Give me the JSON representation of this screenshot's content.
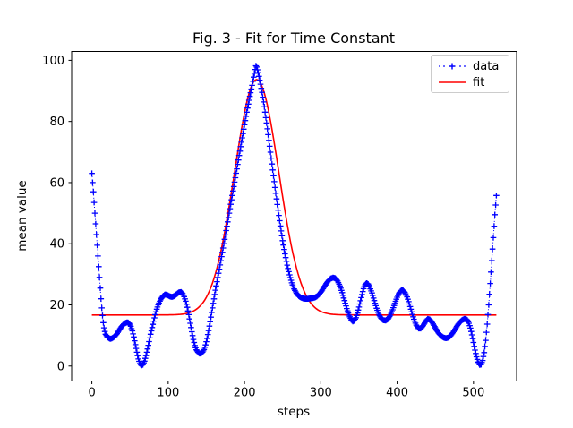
{
  "figure": {
    "background": "#ffffff",
    "axes_color": "#000000",
    "legend_border_color": "#cccccc"
  },
  "chart_data": {
    "type": "line",
    "title": "Fig. 3 - Fit for Time Constant",
    "xlabel": "steps",
    "ylabel": "mean value",
    "xlim": [
      -26.5,
      556.5
    ],
    "ylim": [
      -4.9,
      102.9
    ],
    "xticks": [
      0,
      100,
      200,
      300,
      400,
      500
    ],
    "yticks": [
      0,
      20,
      40,
      60,
      80,
      100
    ],
    "grid": false,
    "legend_position": "upper right",
    "series": [
      {
        "name": "data",
        "color": "#0000ff",
        "linestyle": "dotted",
        "marker": "plus",
        "marker_every": 1,
        "x_range": [
          0,
          530
        ],
        "points": [
          [
            0,
            63
          ],
          [
            1,
            60
          ],
          [
            2,
            57
          ],
          [
            3,
            53.5
          ],
          [
            4,
            50
          ],
          [
            5,
            46.5
          ],
          [
            6,
            43
          ],
          [
            7,
            39.5
          ],
          [
            8,
            36
          ],
          [
            9,
            32.5
          ],
          [
            10,
            29
          ],
          [
            11,
            25.5
          ],
          [
            12,
            22
          ],
          [
            13,
            19
          ],
          [
            14,
            16.5
          ],
          [
            15,
            14.2
          ],
          [
            16,
            12.5
          ],
          [
            17,
            11.3
          ],
          [
            18,
            10.4
          ],
          [
            20,
            9.6
          ],
          [
            22,
            9.2
          ],
          [
            24,
            8.9
          ],
          [
            26,
            9
          ],
          [
            28,
            9.3
          ],
          [
            30,
            9.7
          ],
          [
            33,
            10.6
          ],
          [
            36,
            11.8
          ],
          [
            39,
            12.9
          ],
          [
            42,
            13.8
          ],
          [
            45,
            14.2
          ],
          [
            47,
            14.3
          ],
          [
            49,
            13.9
          ],
          [
            51,
            13
          ],
          [
            53,
            11.5
          ],
          [
            55,
            9.5
          ],
          [
            57,
            7
          ],
          [
            59,
            4.5
          ],
          [
            61,
            2.3
          ],
          [
            63,
            0.8
          ],
          [
            65,
            0.2
          ],
          [
            67,
            0.5
          ],
          [
            69,
            1.6
          ],
          [
            71,
            3.4
          ],
          [
            73,
            5.6
          ],
          [
            75,
            8
          ],
          [
            77,
            10.4
          ],
          [
            79,
            12.6
          ],
          [
            81,
            14.7
          ],
          [
            83,
            16.8
          ],
          [
            85,
            18.6
          ],
          [
            87,
            20
          ],
          [
            89,
            21.2
          ],
          [
            91,
            22.1
          ],
          [
            93,
            22.8
          ],
          [
            96,
            23.4
          ],
          [
            99,
            23.2
          ],
          [
            102,
            22.8
          ],
          [
            105,
            22.6
          ],
          [
            108,
            22.9
          ],
          [
            111,
            23.5
          ],
          [
            114,
            24.1
          ],
          [
            117,
            24.2
          ],
          [
            119,
            23.7
          ],
          [
            121,
            22.7
          ],
          [
            123,
            21.2
          ],
          [
            125,
            19.2
          ],
          [
            127,
            16.8
          ],
          [
            129,
            14
          ],
          [
            131,
            11.2
          ],
          [
            133,
            8.7
          ],
          [
            135,
            6.7
          ],
          [
            137,
            5.3
          ],
          [
            139,
            4.5
          ],
          [
            141,
            4.1
          ],
          [
            143,
            4.1
          ],
          [
            145,
            4.5
          ],
          [
            147,
            5.4
          ],
          [
            149,
            6.9
          ],
          [
            151,
            9
          ],
          [
            153,
            11.6
          ],
          [
            155,
            14.5
          ],
          [
            157,
            17.5
          ],
          [
            159,
            20.5
          ],
          [
            161,
            23.4
          ],
          [
            164,
            27.6
          ],
          [
            167,
            31.7
          ],
          [
            170,
            35.8
          ],
          [
            173,
            40
          ],
          [
            176,
            44.3
          ],
          [
            180,
            50
          ],
          [
            184,
            55.8
          ],
          [
            188,
            61.6
          ],
          [
            192,
            67.4
          ],
          [
            196,
            73.2
          ],
          [
            200,
            78.9
          ],
          [
            204,
            84.4
          ],
          [
            207,
            88.2
          ],
          [
            210,
            91.8
          ],
          [
            212,
            94.5
          ],
          [
            214,
            97
          ],
          [
            215,
            98.2
          ],
          [
            216,
            97.8
          ],
          [
            218,
            96
          ],
          [
            220,
            93.5
          ],
          [
            223,
            89.5
          ],
          [
            226,
            84.8
          ],
          [
            229,
            79.5
          ],
          [
            232,
            73.8
          ],
          [
            235,
            68
          ],
          [
            238,
            62.2
          ],
          [
            241,
            56.5
          ],
          [
            244,
            51
          ],
          [
            247,
            45.8
          ],
          [
            250,
            41
          ],
          [
            253,
            36.7
          ],
          [
            256,
            33
          ],
          [
            259,
            29.8
          ],
          [
            262,
            27.2
          ],
          [
            265,
            25.2
          ],
          [
            268,
            23.8
          ],
          [
            271,
            22.9
          ],
          [
            274,
            22.4
          ],
          [
            277,
            22.1
          ],
          [
            280,
            22
          ],
          [
            283,
            22
          ],
          [
            286,
            22.1
          ],
          [
            289,
            22.2
          ],
          [
            292,
            22.4
          ],
          [
            295,
            22.8
          ],
          [
            298,
            23.5
          ],
          [
            301,
            24.5
          ],
          [
            304,
            25.7
          ],
          [
            307,
            26.9
          ],
          [
            310,
            27.9
          ],
          [
            313,
            28.6
          ],
          [
            316,
            28.9
          ],
          [
            319,
            28.7
          ],
          [
            322,
            27.8
          ],
          [
            325,
            26.2
          ],
          [
            328,
            24
          ],
          [
            331,
            21.4
          ],
          [
            334,
            18.8
          ],
          [
            337,
            16.6
          ],
          [
            340,
            15.1
          ],
          [
            342,
            14.6
          ],
          [
            344,
            14.9
          ],
          [
            346,
            15.8
          ],
          [
            348,
            17.3
          ],
          [
            351,
            20.3
          ],
          [
            354,
            23.4
          ],
          [
            356,
            25.3
          ],
          [
            358,
            26.6
          ],
          [
            360,
            27.1
          ],
          [
            362,
            26.8
          ],
          [
            364,
            25.9
          ],
          [
            367,
            23.9
          ],
          [
            370,
            21.4
          ],
          [
            373,
            18.9
          ],
          [
            376,
            16.9
          ],
          [
            379,
            15.6
          ],
          [
            382,
            15
          ],
          [
            385,
            14.9
          ],
          [
            388,
            15.4
          ],
          [
            391,
            16.6
          ],
          [
            394,
            18.4
          ],
          [
            397,
            20.5
          ],
          [
            400,
            22.5
          ],
          [
            402,
            23.6
          ],
          [
            404,
            24.4
          ],
          [
            406,
            24.8
          ],
          [
            408,
            24.7
          ],
          [
            410,
            24.1
          ],
          [
            413,
            22.6
          ],
          [
            416,
            20.3
          ],
          [
            419,
            17.7
          ],
          [
            422,
            15.3
          ],
          [
            425,
            13.4
          ],
          [
            428,
            12.3
          ],
          [
            431,
            12.3
          ],
          [
            434,
            13.2
          ],
          [
            437,
            14.5
          ],
          [
            440,
            15.4
          ],
          [
            443,
            15.2
          ],
          [
            446,
            14.2
          ],
          [
            449,
            12.9
          ],
          [
            452,
            11.6
          ],
          [
            455,
            10.5
          ],
          [
            458,
            9.8
          ],
          [
            461,
            9.3
          ],
          [
            464,
            9.1
          ],
          [
            467,
            9.3
          ],
          [
            470,
            9.9
          ],
          [
            473,
            10.9
          ],
          [
            476,
            12.1
          ],
          [
            479,
            13.3
          ],
          [
            482,
            14.3
          ],
          [
            485,
            15
          ],
          [
            488,
            15.4
          ],
          [
            490,
            15.4
          ],
          [
            492,
            15
          ],
          [
            494,
            14
          ],
          [
            496,
            12.4
          ],
          [
            498,
            10.2
          ],
          [
            500,
            7.7
          ],
          [
            502,
            5.2
          ],
          [
            504,
            3
          ],
          [
            506,
            1.3
          ],
          [
            508,
            0.4
          ],
          [
            510,
            0.5
          ],
          [
            512,
            1.8
          ],
          [
            514,
            4.4
          ],
          [
            516,
            8.4
          ],
          [
            518,
            13.7
          ],
          [
            520,
            20
          ],
          [
            522,
            27
          ],
          [
            524,
            34.5
          ],
          [
            526,
            42
          ],
          [
            528,
            49.5
          ],
          [
            530,
            55.8
          ]
        ]
      },
      {
        "name": "fit",
        "color": "#ff0000",
        "linestyle": "solid",
        "model": "gaussian",
        "params": {
          "baseline": 16.7,
          "amplitude": 77,
          "center": 216,
          "sigma": 29
        },
        "x_range": [
          0,
          530
        ]
      }
    ]
  }
}
